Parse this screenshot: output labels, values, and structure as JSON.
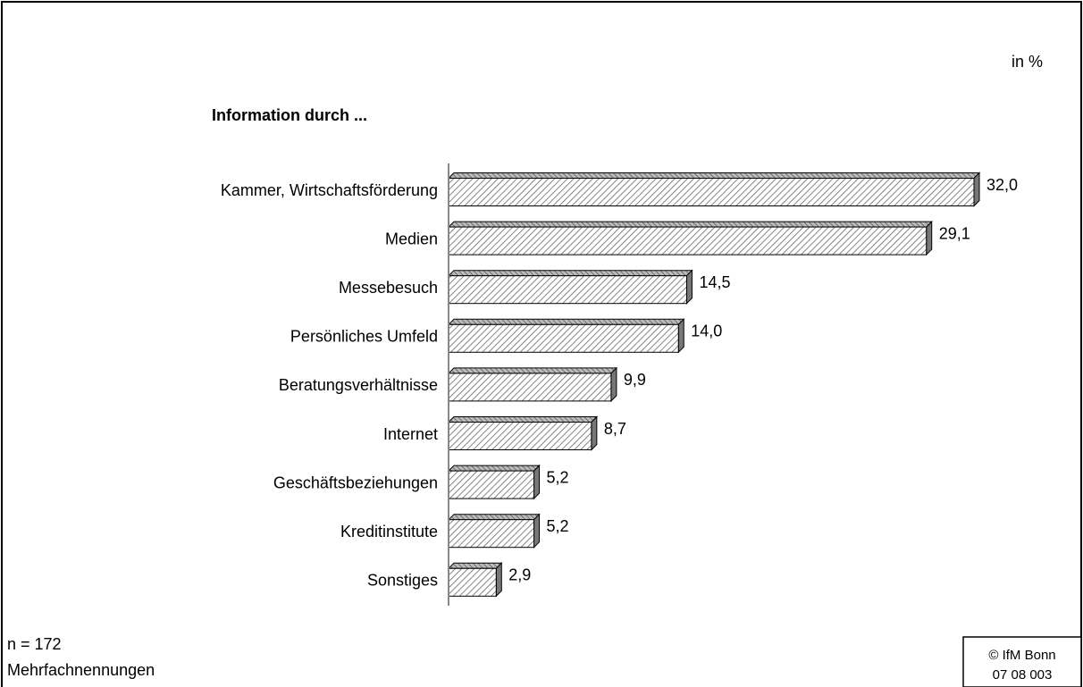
{
  "chart_data": {
    "type": "bar",
    "orientation": "horizontal",
    "title": "Information durch ...",
    "unit_label": "in %",
    "categories": [
      "Kammer, Wirtschaftsförderung",
      "Medien",
      "Messebesuch",
      "Persönliches Umfeld",
      "Beratungsverhältnisse",
      "Internet",
      "Geschäftsbeziehungen",
      "Kreditinstitute",
      "Sonstiges"
    ],
    "values": [
      32.0,
      29.1,
      14.5,
      14.0,
      9.9,
      8.7,
      5.2,
      5.2,
      2.9
    ],
    "value_labels": [
      "32,0",
      "29,1",
      "14,5",
      "14,0",
      "9,9",
      "8,7",
      "5,2",
      "5,2",
      "2,9"
    ],
    "color": "#d9d9d9",
    "notes": [
      "n = 172",
      "Mehrfachnennungen"
    ],
    "source": [
      "© IfM Bonn",
      "07 08 003"
    ]
  }
}
